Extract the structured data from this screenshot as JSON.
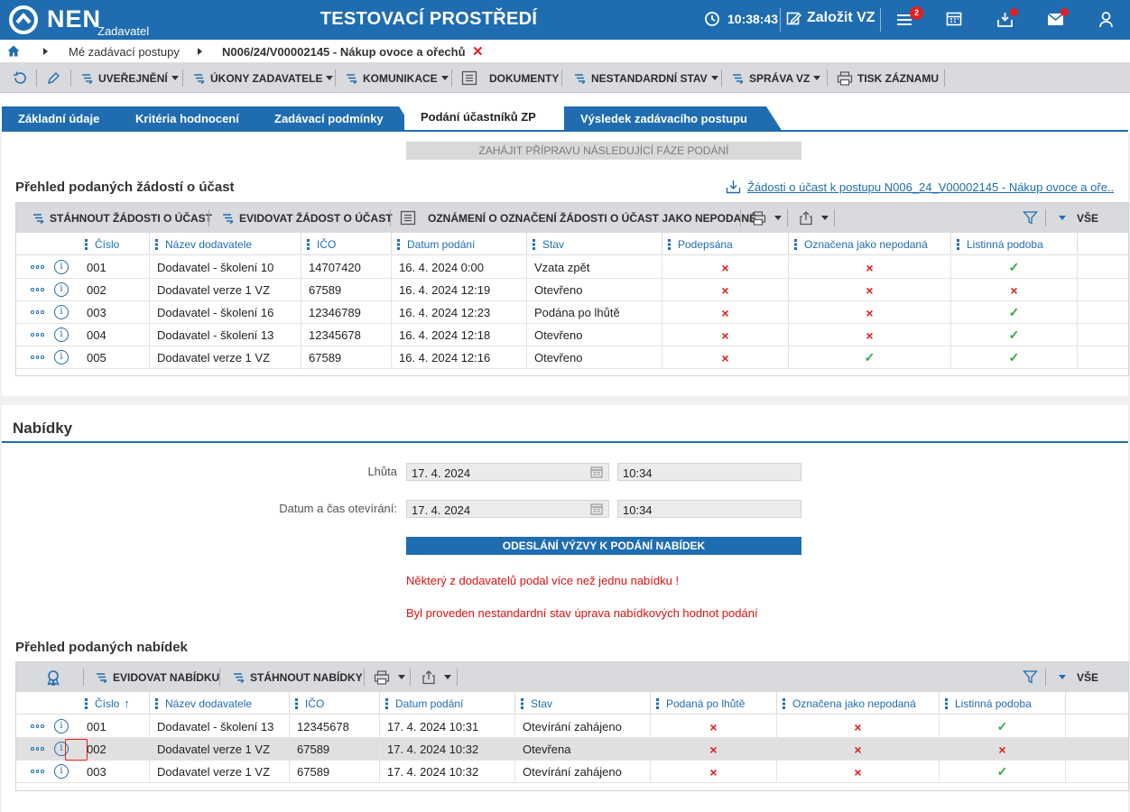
{
  "header": {
    "logo_text": "NEN",
    "logo_sub": "Zadavatel",
    "env_title": "TESTOVACÍ PROSTŘEDÍ",
    "clock": "10:38:43",
    "create_label": "Založit VZ",
    "notifications_count": "2",
    "colors": {
      "brand": "#1f6db0",
      "badge": "#e02020"
    }
  },
  "breadcrumb": {
    "items": [
      "Mé zadávací postupy",
      "N006/24/V00002145 - Nákup ovoce a ořechů"
    ]
  },
  "toolbar": {
    "items": [
      "UVEŘEJNĚNÍ",
      "ÚKONY ZADAVATELE",
      "KOMUNIKACE",
      "DOKUMENTY",
      "NESTANDARDNÍ STAV",
      "SPRÁVA VZ",
      "TISK ZÁZNAMU"
    ]
  },
  "tabs": [
    "Základní údaje",
    "Kritéria hodnocení",
    "Zadávací podmínky",
    "Podání účastníků ZP",
    "Výsledek zadávacího postupu"
  ],
  "active_tab": 3,
  "phase_button": "ZAHÁJIT PŘÍPRAVU NÁSLEDUJÍCÍ FÁZE PODÁNÍ",
  "applications": {
    "title": "Přehled podaných žádostí o účast",
    "download_link": "Žádosti o účast k postupu N006_24_V00002145 - Nákup ovoce a oře...",
    "toolbar": {
      "download": "STÁHNOUT ŽÁDOSTI O ÚČAST",
      "register": "EVIDOVAT ŽÁDOST O ÚČAST",
      "notice": "OZNÁMENÍ O OZNAČENÍ ŽÁDOSTI O ÚČAST JAKO NEPODANÉ",
      "all": "VŠE"
    },
    "columns": [
      "Číslo",
      "Název dodavatele",
      "IČO",
      "Datum podání",
      "Stav",
      "Podepsána",
      "Označena jako nepodaná",
      "Listinná podoba"
    ],
    "rows": [
      {
        "cislo": "001",
        "nazev": "Dodavatel - školení 10",
        "ico": "14707420",
        "datum": "16. 4. 2024 0:00",
        "stav": "Vzata zpět",
        "podepsana": "×",
        "nepodana": "×",
        "listinna": "✓"
      },
      {
        "cislo": "002",
        "nazev": "Dodavatel verze 1 VZ",
        "ico": "67589",
        "datum": "16. 4. 2024 12:19",
        "stav": "Otevřeno",
        "podepsana": "×",
        "nepodana": "×",
        "listinna": "×"
      },
      {
        "cislo": "003",
        "nazev": "Dodavatel - školení 16",
        "ico": "12346789",
        "datum": "16. 4. 2024 12:23",
        "stav": "Podána po lhůtě",
        "podepsana": "×",
        "nepodana": "×",
        "listinna": "✓"
      },
      {
        "cislo": "004",
        "nazev": "Dodavatel - školení 13",
        "ico": "12345678",
        "datum": "16. 4. 2024 12:18",
        "stav": "Otevřeno",
        "podepsana": "×",
        "nepodana": "×",
        "listinna": "✓"
      },
      {
        "cislo": "005",
        "nazev": "Dodavatel verze 1 VZ",
        "ico": "67589",
        "datum": "16. 4. 2024 12:16",
        "stav": "Otevřeno",
        "podepsana": "×",
        "nepodana": "✓",
        "listinna": "✓"
      }
    ]
  },
  "offers_section": {
    "title": "Nabídky",
    "deadline_label": "Lhůta",
    "deadline_date": "17. 4. 2024",
    "deadline_time": "10:34",
    "opening_label": "Datum a čas otevírání:",
    "opening_date": "17. 4. 2024",
    "opening_time": "10:34",
    "send_button": "ODESLÁNÍ VÝZVY K PODÁNÍ NABÍDEK",
    "warning1": "Některý z dodavatelů podal více než jednu nabídku !",
    "warning2": "Byl proveden nestandardní stav úprava nabídkových hodnot podání"
  },
  "offers": {
    "title": "Přehled podaných nabídek",
    "toolbar": {
      "register": "EVIDOVAT NABÍDKU",
      "download": "STÁHNOUT NABÍDKY",
      "all": "VŠE"
    },
    "columns": [
      "Číslo",
      "Název dodavatele",
      "IČO",
      "Datum podání",
      "Stav",
      "Podaná po lhůtě",
      "Označena jako nepodaná",
      "Listinná podoba"
    ],
    "sort_column": "Číslo",
    "sort_direction": "ascending",
    "rows": [
      {
        "cislo": "001",
        "nazev": "Dodavatel - školení 13",
        "ico": "12345678",
        "datum": "17. 4. 2024 10:31",
        "stav": "Otevírání zahájeno",
        "po_lhute": "×",
        "nepodana": "×",
        "listinna": "✓"
      },
      {
        "cislo": "002",
        "nazev": "Dodavatel verze 1 VZ",
        "ico": "67589",
        "datum": "17. 4. 2024 10:32",
        "stav": "Otevřena",
        "po_lhute": "×",
        "nepodana": "×",
        "listinna": "×"
      },
      {
        "cislo": "003",
        "nazev": "Dodavatel verze 1 VZ",
        "ico": "67589",
        "datum": "17. 4. 2024 10:32",
        "stav": "Otevírání zahájeno",
        "po_lhute": "×",
        "nepodana": "×",
        "listinna": "✓"
      }
    ],
    "selected_row": 1
  }
}
